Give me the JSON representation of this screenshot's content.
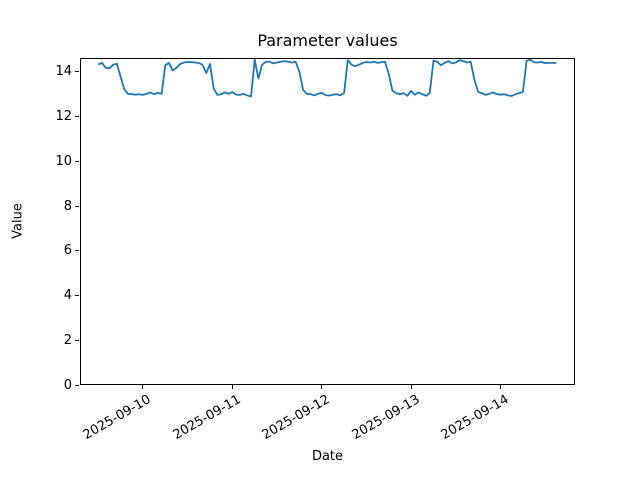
{
  "chart_data": {
    "type": "line",
    "title": "Parameter values",
    "xlabel": "Date",
    "ylabel": "Value",
    "line_color": "#1f77b4",
    "line_width": 1.8,
    "grid": false,
    "legend": null,
    "x_start": "2025-09-09 12:00",
    "x_step_hours": 1,
    "xlim_hours_from_start": [
      -4.9,
      128.0
    ],
    "ylim": [
      0,
      14.62
    ],
    "y_ticks": [
      0,
      2,
      4,
      6,
      8,
      10,
      12,
      14
    ],
    "x_ticks": [
      {
        "hours_from_start": 12,
        "label": "2025-09-10"
      },
      {
        "hours_from_start": 36,
        "label": "2025-09-11"
      },
      {
        "hours_from_start": 60,
        "label": "2025-09-12"
      },
      {
        "hours_from_start": 84,
        "label": "2025-09-13"
      },
      {
        "hours_from_start": 108,
        "label": "2025-09-14"
      }
    ],
    "values": [
      14.33,
      14.4,
      14.18,
      14.15,
      14.32,
      14.36,
      13.78,
      13.22,
      13.02,
      13.0,
      12.98,
      13.0,
      12.97,
      13.02,
      13.08,
      13.0,
      13.06,
      13.02,
      14.3,
      14.4,
      14.06,
      14.18,
      14.35,
      14.42,
      14.44,
      14.43,
      14.42,
      14.4,
      14.32,
      13.95,
      14.35,
      13.25,
      12.97,
      13.0,
      13.08,
      13.02,
      13.1,
      12.98,
      12.97,
      13.02,
      12.95,
      12.9,
      14.55,
      13.7,
      14.32,
      14.45,
      14.46,
      14.38,
      14.42,
      14.45,
      14.48,
      14.45,
      14.42,
      14.45,
      14.0,
      13.2,
      13.02,
      13.0,
      12.95,
      13.02,
      13.06,
      12.96,
      12.94,
      12.98,
      13.0,
      12.95,
      13.05,
      14.53,
      14.32,
      14.25,
      14.32,
      14.4,
      14.44,
      14.42,
      14.45,
      14.4,
      14.43,
      14.45,
      13.9,
      13.15,
      13.05,
      13.0,
      13.05,
      12.93,
      13.15,
      12.98,
      13.08,
      13.0,
      12.93,
      13.05,
      14.5,
      14.45,
      14.3,
      14.4,
      14.48,
      14.38,
      14.42,
      14.52,
      14.48,
      14.42,
      14.45,
      13.65,
      13.1,
      13.05,
      12.97,
      13.02,
      13.08,
      13.0,
      12.98,
      13.0,
      12.95,
      12.92,
      13.0,
      13.05,
      13.1,
      14.5,
      14.55,
      14.43,
      14.42,
      14.44,
      14.39,
      14.4,
      14.4,
      14.4
    ]
  }
}
